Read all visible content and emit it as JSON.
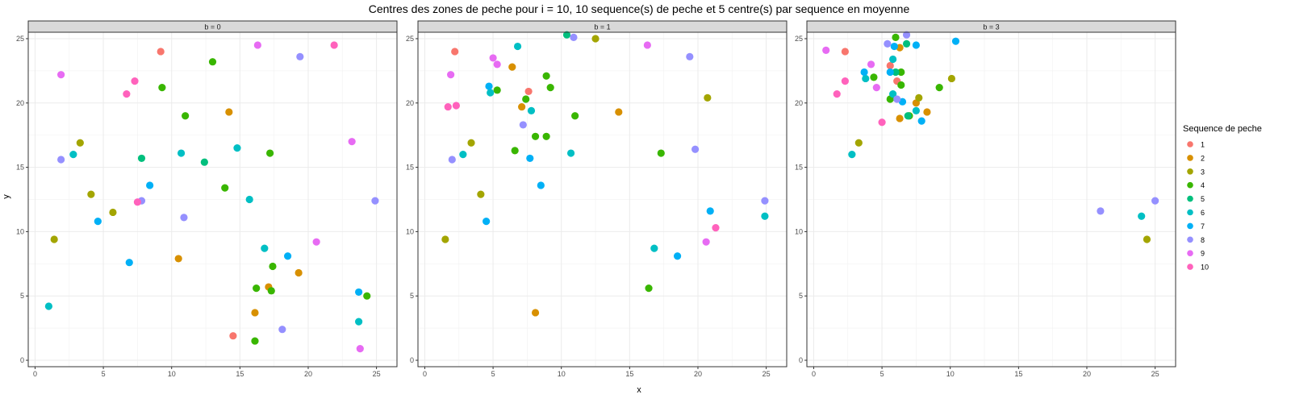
{
  "chart_data": {
    "type": "scatter",
    "title": "Centres des zones de peche pour i = 10, 10 sequence(s) de peche et 5 centre(s) par sequence en moyenne",
    "xlabel": "x",
    "ylabel": "y",
    "xlim": [
      -0.5,
      26.5
    ],
    "ylim": [
      -0.5,
      25.5
    ],
    "x_ticks": [
      0,
      5,
      10,
      15,
      20,
      25
    ],
    "y_ticks": [
      0,
      5,
      10,
      15,
      20,
      25
    ],
    "grid": true,
    "legend": {
      "title": "Sequence de peche",
      "placement": "right",
      "entries": [
        "1",
        "2",
        "3",
        "4",
        "5",
        "6",
        "7",
        "8",
        "9",
        "10"
      ]
    },
    "colors": {
      "1": "#F8766D",
      "2": "#D89000",
      "3": "#A3A500",
      "4": "#39B600",
      "5": "#00BF7D",
      "6": "#00BFC4",
      "7": "#00B0F6",
      "8": "#9590FF",
      "9": "#E76BF3",
      "10": "#FF62BC"
    },
    "panels": [
      {
        "label": "b = 0",
        "points": [
          {
            "s": "1",
            "x": 9.2,
            "y": 24.0
          },
          {
            "s": "1",
            "x": 14.5,
            "y": 1.9
          },
          {
            "s": "2",
            "x": 14.2,
            "y": 19.3
          },
          {
            "s": "2",
            "x": 10.5,
            "y": 7.9
          },
          {
            "s": "2",
            "x": 17.1,
            "y": 5.7
          },
          {
            "s": "2",
            "x": 19.3,
            "y": 6.8
          },
          {
            "s": "2",
            "x": 16.1,
            "y": 3.7
          },
          {
            "s": "3",
            "x": 3.3,
            "y": 16.9
          },
          {
            "s": "3",
            "x": 4.1,
            "y": 12.9
          },
          {
            "s": "3",
            "x": 5.7,
            "y": 11.5
          },
          {
            "s": "3",
            "x": 1.4,
            "y": 9.4
          },
          {
            "s": "4",
            "x": 13.0,
            "y": 23.2
          },
          {
            "s": "4",
            "x": 9.3,
            "y": 21.2
          },
          {
            "s": "4",
            "x": 11.0,
            "y": 19.0
          },
          {
            "s": "4",
            "x": 17.2,
            "y": 16.1
          },
          {
            "s": "4",
            "x": 13.9,
            "y": 13.4
          },
          {
            "s": "4",
            "x": 17.4,
            "y": 7.3
          },
          {
            "s": "4",
            "x": 16.2,
            "y": 5.6
          },
          {
            "s": "4",
            "x": 17.3,
            "y": 5.4
          },
          {
            "s": "4",
            "x": 24.3,
            "y": 5.0
          },
          {
            "s": "4",
            "x": 16.1,
            "y": 1.5
          },
          {
            "s": "5",
            "x": 7.8,
            "y": 15.7
          },
          {
            "s": "5",
            "x": 12.4,
            "y": 15.4
          },
          {
            "s": "6",
            "x": 2.8,
            "y": 16.0
          },
          {
            "s": "6",
            "x": 10.7,
            "y": 16.1
          },
          {
            "s": "6",
            "x": 14.8,
            "y": 16.5
          },
          {
            "s": "6",
            "x": 15.7,
            "y": 12.5
          },
          {
            "s": "6",
            "x": 16.8,
            "y": 8.7
          },
          {
            "s": "6",
            "x": 1.0,
            "y": 4.2
          },
          {
            "s": "6",
            "x": 23.7,
            "y": 3.0
          },
          {
            "s": "7",
            "x": 8.4,
            "y": 13.6
          },
          {
            "s": "7",
            "x": 4.6,
            "y": 10.8
          },
          {
            "s": "7",
            "x": 6.9,
            "y": 7.6
          },
          {
            "s": "7",
            "x": 18.5,
            "y": 8.1
          },
          {
            "s": "7",
            "x": 23.7,
            "y": 5.3
          },
          {
            "s": "8",
            "x": 19.4,
            "y": 23.6
          },
          {
            "s": "8",
            "x": 1.9,
            "y": 15.6
          },
          {
            "s": "8",
            "x": 7.8,
            "y": 12.4
          },
          {
            "s": "8",
            "x": 10.9,
            "y": 11.1
          },
          {
            "s": "8",
            "x": 24.9,
            "y": 12.4
          },
          {
            "s": "8",
            "x": 18.1,
            "y": 2.4
          },
          {
            "s": "9",
            "x": 1.9,
            "y": 22.2
          },
          {
            "s": "9",
            "x": 16.3,
            "y": 24.5
          },
          {
            "s": "9",
            "x": 23.2,
            "y": 17.0
          },
          {
            "s": "9",
            "x": 20.6,
            "y": 9.2
          },
          {
            "s": "9",
            "x": 23.8,
            "y": 0.9
          },
          {
            "s": "10",
            "x": 7.3,
            "y": 21.7
          },
          {
            "s": "10",
            "x": 6.7,
            "y": 20.7
          },
          {
            "s": "10",
            "x": 21.9,
            "y": 24.5
          },
          {
            "s": "10",
            "x": 7.5,
            "y": 12.3
          }
        ]
      },
      {
        "label": "b = 1",
        "points": [
          {
            "s": "1",
            "x": 2.2,
            "y": 24.0
          },
          {
            "s": "1",
            "x": 7.6,
            "y": 20.9
          },
          {
            "s": "2",
            "x": 6.4,
            "y": 22.8
          },
          {
            "s": "2",
            "x": 7.1,
            "y": 19.7
          },
          {
            "s": "2",
            "x": 14.2,
            "y": 19.3
          },
          {
            "s": "2",
            "x": 8.1,
            "y": 3.7
          },
          {
            "s": "3",
            "x": 12.5,
            "y": 25.0
          },
          {
            "s": "3",
            "x": 20.7,
            "y": 20.4
          },
          {
            "s": "3",
            "x": 3.4,
            "y": 16.9
          },
          {
            "s": "3",
            "x": 4.1,
            "y": 12.9
          },
          {
            "s": "3",
            "x": 1.5,
            "y": 9.4
          },
          {
            "s": "4",
            "x": 8.9,
            "y": 22.1
          },
          {
            "s": "4",
            "x": 9.2,
            "y": 21.2
          },
          {
            "s": "4",
            "x": 5.3,
            "y": 21.0
          },
          {
            "s": "4",
            "x": 7.4,
            "y": 20.3
          },
          {
            "s": "4",
            "x": 11.0,
            "y": 19.0
          },
          {
            "s": "4",
            "x": 8.1,
            "y": 17.4
          },
          {
            "s": "4",
            "x": 8.9,
            "y": 17.4
          },
          {
            "s": "4",
            "x": 6.6,
            "y": 16.3
          },
          {
            "s": "4",
            "x": 17.3,
            "y": 16.1
          },
          {
            "s": "4",
            "x": 16.4,
            "y": 5.6
          },
          {
            "s": "5",
            "x": 10.4,
            "y": 25.3
          },
          {
            "s": "6",
            "x": 6.8,
            "y": 24.4
          },
          {
            "s": "6",
            "x": 4.8,
            "y": 20.8
          },
          {
            "s": "6",
            "x": 7.8,
            "y": 19.4
          },
          {
            "s": "6",
            "x": 2.8,
            "y": 16.0
          },
          {
            "s": "6",
            "x": 10.7,
            "y": 16.1
          },
          {
            "s": "6",
            "x": 16.8,
            "y": 8.7
          },
          {
            "s": "6",
            "x": 24.9,
            "y": 11.2
          },
          {
            "s": "7",
            "x": 4.7,
            "y": 21.3
          },
          {
            "s": "7",
            "x": 7.7,
            "y": 15.7
          },
          {
            "s": "7",
            "x": 8.5,
            "y": 13.6
          },
          {
            "s": "7",
            "x": 4.5,
            "y": 10.8
          },
          {
            "s": "7",
            "x": 18.5,
            "y": 8.1
          },
          {
            "s": "7",
            "x": 20.9,
            "y": 11.6
          },
          {
            "s": "8",
            "x": 10.9,
            "y": 25.1
          },
          {
            "s": "8",
            "x": 19.4,
            "y": 23.6
          },
          {
            "s": "8",
            "x": 7.2,
            "y": 18.3
          },
          {
            "s": "8",
            "x": 2.0,
            "y": 15.6
          },
          {
            "s": "8",
            "x": 19.8,
            "y": 16.4
          },
          {
            "s": "8",
            "x": 24.9,
            "y": 12.4
          },
          {
            "s": "9",
            "x": 5.0,
            "y": 23.5
          },
          {
            "s": "9",
            "x": 5.3,
            "y": 23.0
          },
          {
            "s": "9",
            "x": 1.9,
            "y": 22.2
          },
          {
            "s": "9",
            "x": 16.3,
            "y": 24.5
          },
          {
            "s": "9",
            "x": 20.6,
            "y": 9.2
          },
          {
            "s": "10",
            "x": 1.7,
            "y": 19.7
          },
          {
            "s": "10",
            "x": 2.3,
            "y": 19.8
          },
          {
            "s": "10",
            "x": 21.3,
            "y": 10.3
          }
        ]
      },
      {
        "label": "b = 3",
        "points": [
          {
            "s": "1",
            "x": 2.3,
            "y": 24.0
          },
          {
            "s": "1",
            "x": 5.6,
            "y": 22.9
          },
          {
            "s": "1",
            "x": 6.1,
            "y": 21.7
          },
          {
            "s": "2",
            "x": 6.3,
            "y": 24.3
          },
          {
            "s": "2",
            "x": 6.3,
            "y": 18.8
          },
          {
            "s": "2",
            "x": 7.5,
            "y": 20.0
          },
          {
            "s": "2",
            "x": 8.3,
            "y": 19.3
          },
          {
            "s": "3",
            "x": 7.7,
            "y": 20.4
          },
          {
            "s": "3",
            "x": 10.1,
            "y": 21.9
          },
          {
            "s": "3",
            "x": 3.3,
            "y": 16.9
          },
          {
            "s": "3",
            "x": 24.4,
            "y": 9.4
          },
          {
            "s": "4",
            "x": 6.0,
            "y": 25.1
          },
          {
            "s": "4",
            "x": 4.4,
            "y": 22.0
          },
          {
            "s": "4",
            "x": 6.4,
            "y": 22.4
          },
          {
            "s": "4",
            "x": 6.4,
            "y": 21.4
          },
          {
            "s": "4",
            "x": 5.6,
            "y": 20.3
          },
          {
            "s": "4",
            "x": 7.0,
            "y": 19.0
          },
          {
            "s": "4",
            "x": 9.2,
            "y": 21.2
          },
          {
            "s": "5",
            "x": 6.8,
            "y": 24.6
          },
          {
            "s": "5",
            "x": 6.0,
            "y": 22.4
          },
          {
            "s": "5",
            "x": 6.9,
            "y": 19.0
          },
          {
            "s": "6",
            "x": 5.8,
            "y": 23.4
          },
          {
            "s": "6",
            "x": 3.8,
            "y": 21.9
          },
          {
            "s": "6",
            "x": 5.8,
            "y": 20.7
          },
          {
            "s": "6",
            "x": 7.5,
            "y": 19.4
          },
          {
            "s": "6",
            "x": 2.8,
            "y": 16.0
          },
          {
            "s": "6",
            "x": 24.0,
            "y": 11.2
          },
          {
            "s": "7",
            "x": 5.9,
            "y": 24.4
          },
          {
            "s": "7",
            "x": 7.5,
            "y": 24.5
          },
          {
            "s": "7",
            "x": 10.4,
            "y": 24.8
          },
          {
            "s": "7",
            "x": 3.7,
            "y": 22.4
          },
          {
            "s": "7",
            "x": 5.6,
            "y": 22.4
          },
          {
            "s": "7",
            "x": 6.5,
            "y": 20.1
          },
          {
            "s": "7",
            "x": 7.9,
            "y": 18.6
          },
          {
            "s": "8",
            "x": 5.4,
            "y": 24.6
          },
          {
            "s": "8",
            "x": 6.8,
            "y": 25.3
          },
          {
            "s": "8",
            "x": 6.1,
            "y": 20.3
          },
          {
            "s": "8",
            "x": 21.0,
            "y": 11.6
          },
          {
            "s": "8",
            "x": 25.0,
            "y": 12.4
          },
          {
            "s": "9",
            "x": 0.9,
            "y": 24.1
          },
          {
            "s": "9",
            "x": 4.2,
            "y": 23.0
          },
          {
            "s": "9",
            "x": 4.6,
            "y": 21.2
          },
          {
            "s": "10",
            "x": 2.3,
            "y": 21.7
          },
          {
            "s": "10",
            "x": 1.7,
            "y": 20.7
          },
          {
            "s": "10",
            "x": 5.0,
            "y": 18.5
          }
        ]
      }
    ]
  }
}
